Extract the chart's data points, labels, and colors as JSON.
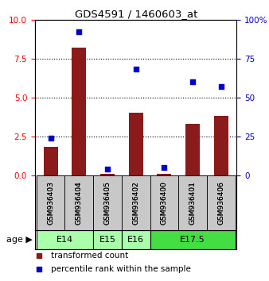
{
  "title": "GDS4591 / 1460603_at",
  "samples": [
    "GSM936403",
    "GSM936404",
    "GSM936405",
    "GSM936402",
    "GSM936400",
    "GSM936401",
    "GSM936406"
  ],
  "transformed_count": [
    1.8,
    8.2,
    0.1,
    4.0,
    0.1,
    3.3,
    3.8
  ],
  "percentile_rank": [
    24,
    92,
    4,
    68,
    5,
    60,
    57
  ],
  "bar_color": "#8B1A1A",
  "dot_color": "#0000CC",
  "ylim_left": [
    0,
    10
  ],
  "ylim_right": [
    0,
    100
  ],
  "yticks_left": [
    0,
    2.5,
    5,
    7.5,
    10
  ],
  "yticks_right": [
    0,
    25,
    50,
    75,
    100
  ],
  "ytick_labels_right": [
    "0",
    "25",
    "50",
    "75",
    "100%"
  ],
  "age_groups": [
    {
      "label": "E14",
      "spans": [
        0,
        2
      ],
      "color": "#aaffaa"
    },
    {
      "label": "E15",
      "spans": [
        2,
        3
      ],
      "color": "#aaffaa"
    },
    {
      "label": "E16",
      "spans": [
        3,
        4
      ],
      "color": "#aaffaa"
    },
    {
      "label": "E17.5",
      "spans": [
        4,
        7
      ],
      "color": "#44dd44"
    }
  ],
  "grid_dotted_at": [
    2.5,
    5.0,
    7.5
  ],
  "bar_width": 0.5,
  "background_color": "#ffffff",
  "sample_box_color": "#c8c8c8"
}
